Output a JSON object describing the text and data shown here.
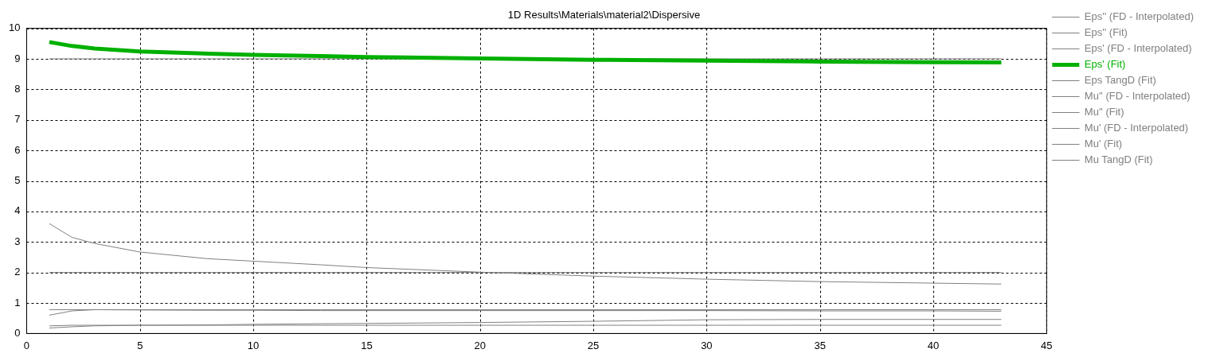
{
  "chart_data": {
    "type": "line",
    "title": "1D Results\\Materials\\material2\\Dispersive",
    "x": [
      1,
      2,
      3,
      5,
      8,
      10,
      13,
      15,
      20,
      25,
      30,
      35,
      40,
      43
    ],
    "series": [
      {
        "name": "Eps'' (FD - Interpolated)",
        "color": "#808080",
        "values": [
          2,
          2,
          2,
          2,
          2,
          2,
          2,
          2,
          2,
          2,
          2,
          2,
          2,
          2
        ]
      },
      {
        "name": "Eps'' (Fit)",
        "color": "#808080",
        "values": [
          3.6,
          3.15,
          2.95,
          2.67,
          2.45,
          2.37,
          2.25,
          2.16,
          2.01,
          1.88,
          1.78,
          1.7,
          1.65,
          1.62
        ]
      },
      {
        "name": "Eps' (FD - Interpolated)",
        "color": "#808080",
        "values": [
          9,
          9,
          9,
          9,
          9,
          9,
          9,
          9,
          9,
          9,
          9,
          9,
          9,
          9
        ]
      },
      {
        "name": "Eps' (Fit)",
        "color": "#00b000",
        "values": [
          9.55,
          9.42,
          9.34,
          9.24,
          9.17,
          9.13,
          9.09,
          9.06,
          9.01,
          8.97,
          8.94,
          8.91,
          8.89,
          8.88
        ]
      },
      {
        "name": "Eps TangD (Fit)",
        "color": "#808080",
        "values": [
          0.18,
          0.22,
          0.25,
          0.27,
          0.28,
          0.3,
          0.32,
          0.33,
          0.36,
          0.4,
          0.45,
          0.46,
          0.46,
          0.46
        ]
      },
      {
        "name": "Mu'' (FD - Interpolated)",
        "color": "#808080",
        "values": [
          0.78,
          0.78,
          0.78,
          0.78,
          0.78,
          0.78,
          0.78,
          0.78,
          0.78,
          0.78,
          0.78,
          0.78,
          0.78,
          0.78
        ]
      },
      {
        "name": "Mu'' (Fit)",
        "color": "#808080",
        "values": [
          0.6,
          0.74,
          0.78,
          0.77,
          0.76,
          0.76,
          0.75,
          0.75,
          0.75,
          0.75,
          0.75,
          0.74,
          0.74,
          0.73
        ]
      },
      {
        "name": "Mu' (FD - Interpolated)",
        "color": "#808080",
        "values": [
          0.25,
          0.27,
          0.27,
          0.27,
          0.27,
          0.27,
          0.27,
          0.27,
          0.27,
          0.27,
          0.27,
          0.27,
          0.27,
          0.27
        ]
      },
      {
        "name": "Mu' (Fit)",
        "color": "#808080",
        "values": [
          null,
          null,
          null,
          null,
          null,
          null,
          null,
          null,
          null,
          null,
          null,
          null,
          null,
          null
        ]
      },
      {
        "name": "Mu TangD (Fit)",
        "color": "#808080",
        "values": [
          null,
          null,
          null,
          null,
          null,
          null,
          null,
          null,
          null,
          null,
          null,
          null,
          null,
          null
        ]
      }
    ],
    "xlim": [
      0,
      45
    ],
    "xticks": [
      0,
      5,
      10,
      15,
      20,
      25,
      30,
      35,
      40,
      45
    ],
    "ylim": [
      0,
      10
    ],
    "yticks": [
      0,
      1,
      2,
      3,
      4,
      5,
      6,
      7,
      8,
      9,
      10
    ],
    "grid": true,
    "legend": "top right",
    "marker": "none",
    "line_style": "solid"
  }
}
